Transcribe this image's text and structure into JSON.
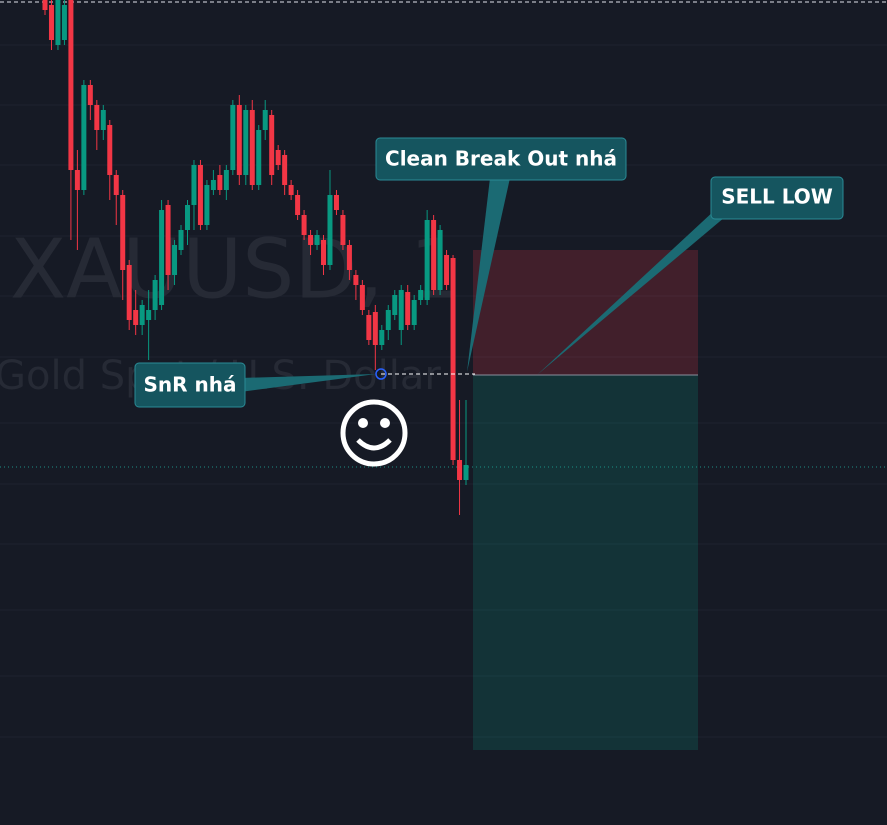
{
  "chart_data": {
    "type": "candlestick",
    "watermark": "XAUUSD, 1",
    "watermark_subtitle": "Gold Spot / U.S. Dollar",
    "annotations": [
      "SnR nhá",
      "Clean Break Out nhá",
      "SELL LOW"
    ],
    "up_color": "#089981",
    "down_color": "#f23645",
    "ylim": [
      0,
      825
    ],
    "open": [
      825,
      820,
      780,
      785,
      825,
      655,
      635,
      740,
      720,
      695,
      700,
      650,
      630,
      560,
      515,
      500,
      505,
      515,
      520,
      620,
      550,
      575,
      595,
      620,
      660,
      600,
      635,
      650,
      635,
      655,
      720,
      650,
      715,
      640,
      695,
      710,
      675,
      670,
      640,
      630,
      610,
      590,
      580,
      585,
      560,
      630,
      610,
      580,
      550,
      540,
      510,
      513,
      480,
      495,
      510,
      495,
      533,
      500,
      525,
      525,
      605,
      535,
      570,
      567,
      365,
      345
    ],
    "high": [
      825,
      825,
      825,
      825,
      825,
      675,
      745,
      745,
      725,
      720,
      705,
      655,
      635,
      565,
      535,
      525,
      535,
      550,
      625,
      625,
      585,
      600,
      625,
      665,
      665,
      645,
      655,
      660,
      660,
      725,
      730,
      720,
      725,
      700,
      725,
      715,
      680,
      675,
      645,
      635,
      615,
      595,
      595,
      590,
      655,
      635,
      615,
      585,
      555,
      545,
      515,
      520,
      500,
      520,
      535,
      540,
      540,
      530,
      540,
      615,
      610,
      600,
      575,
      570,
      425,
      425
    ],
    "low": [
      810,
      775,
      775,
      780,
      585,
      575,
      630,
      705,
      675,
      685,
      625,
      600,
      525,
      495,
      490,
      490,
      465,
      505,
      515,
      535,
      540,
      570,
      580,
      595,
      595,
      595,
      630,
      630,
      625,
      650,
      640,
      640,
      635,
      635,
      685,
      640,
      655,
      630,
      625,
      605,
      585,
      570,
      575,
      550,
      555,
      610,
      575,
      545,
      525,
      510,
      480,
      455,
      475,
      485,
      505,
      480,
      495,
      495,
      520,
      520,
      530,
      530,
      535,
      360,
      310,
      340
    ],
    "close": [
      815,
      785,
      825,
      820,
      655,
      635,
      740,
      720,
      695,
      715,
      650,
      630,
      555,
      505,
      500,
      520,
      515,
      545,
      615,
      550,
      580,
      595,
      620,
      660,
      600,
      640,
      645,
      635,
      655,
      720,
      650,
      715,
      640,
      695,
      715,
      650,
      660,
      640,
      630,
      610,
      590,
      580,
      590,
      560,
      630,
      615,
      580,
      555,
      540,
      515,
      485,
      480,
      495,
      515,
      530,
      535,
      500,
      525,
      535,
      605,
      535,
      595,
      540,
      365,
      345,
      360
    ]
  }
}
